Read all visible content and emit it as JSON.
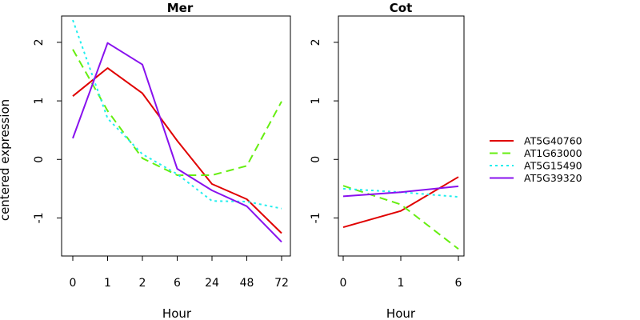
{
  "chart_data": {
    "type": "line",
    "ylabel": "centered expression",
    "ylim": [
      -1.65,
      2.45
    ],
    "yticks": [
      -1,
      0,
      1,
      2
    ],
    "legend_position": "right",
    "series_styles": [
      {
        "name": "AT5G40760",
        "color": "#e00000",
        "dash": "solid"
      },
      {
        "name": "AT1G63000",
        "color": "#66ee11",
        "dash": "dashed"
      },
      {
        "name": "AT5G15490",
        "color": "#22eeee",
        "dash": "dotted"
      },
      {
        "name": "AT5G39320",
        "color": "#8811ee",
        "dash": "solid"
      }
    ],
    "panels": [
      {
        "title": "Mer",
        "xlabel": "Hour",
        "categories": [
          "0",
          "1",
          "2",
          "6",
          "24",
          "48",
          "72"
        ],
        "series": [
          {
            "name": "AT5G40760",
            "values": [
              1.08,
              1.56,
              1.13,
              0.32,
              -0.42,
              -0.68,
              -1.26
            ]
          },
          {
            "name": "AT1G63000",
            "values": [
              1.88,
              0.83,
              0.02,
              -0.27,
              -0.27,
              -0.11,
              0.99
            ]
          },
          {
            "name": "AT5G15490",
            "values": [
              2.38,
              0.7,
              0.09,
              -0.25,
              -0.71,
              -0.72,
              -0.84
            ]
          },
          {
            "name": "AT5G39320",
            "values": [
              0.36,
              1.99,
              1.62,
              -0.16,
              -0.53,
              -0.8,
              -1.41
            ]
          }
        ]
      },
      {
        "title": "Cot",
        "xlabel": "Hour",
        "categories": [
          "0",
          "1",
          "6"
        ],
        "series": [
          {
            "name": "AT5G40760",
            "values": [
              -1.16,
              -0.88,
              -0.3
            ]
          },
          {
            "name": "AT1G63000",
            "values": [
              -0.45,
              -0.77,
              -1.53
            ]
          },
          {
            "name": "AT5G15490",
            "values": [
              -0.5,
              -0.56,
              -0.64
            ]
          },
          {
            "name": "AT5G39320",
            "values": [
              -0.63,
              -0.56,
              -0.46
            ]
          }
        ]
      }
    ]
  }
}
